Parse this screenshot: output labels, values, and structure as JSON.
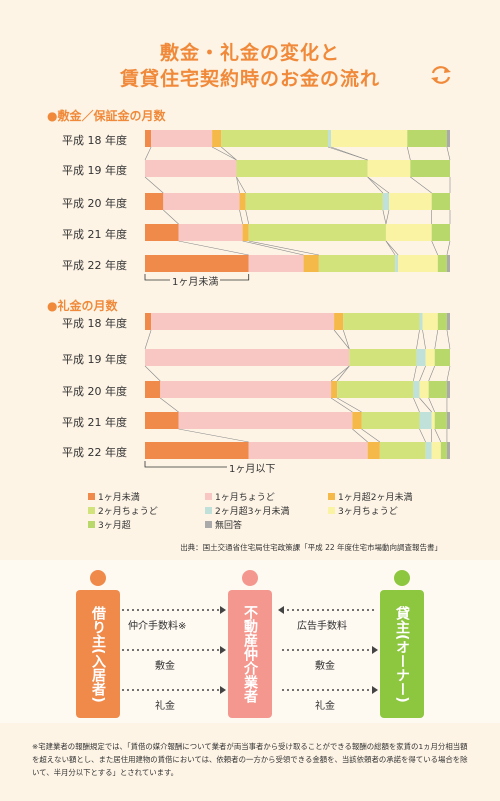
{
  "header": {
    "title_line1": "敷金・礼金の変化と",
    "title_line2": "賃貸住宅契約時のお金の流れ"
  },
  "sections": {
    "deposit_title": "●敷金／保証金の月数",
    "reikin_title": "●礼金の月数",
    "deposit_marker": "1ヶ月未満",
    "reikin_marker": "1ヶ月以下"
  },
  "colors": {
    "lt1": "#f08a4b",
    "eq1": "#f9c7c3",
    "gt1lt2": "#f5b94a",
    "eq2": "#d3e37b",
    "gt2lt3": "#bfe1da",
    "eq3": "#faf3a3",
    "gt3": "#b9d86b",
    "noans": "#aaaaaa",
    "orange_person": "#f08a4b",
    "pink_person": "#f4978e",
    "green_person": "#8dc63f"
  },
  "chart_data": [
    {
      "type": "bar",
      "stacked": true,
      "orientation": "horizontal",
      "title": "●敷金／保証金の月数",
      "categories": [
        "平成 18 年度",
        "平成 19 年度",
        "平成 20 年度",
        "平成 21 年度",
        "平成 22 年度"
      ],
      "xlim": [
        0,
        100
      ],
      "series": [
        {
          "name": "1ヶ月未満",
          "color_key": "lt1",
          "values": [
            2,
            0,
            6,
            11,
            34
          ]
        },
        {
          "name": "1ヶ月ちょうど",
          "color_key": "eq1",
          "values": [
            20,
            30,
            25,
            21,
            18
          ]
        },
        {
          "name": "1ヶ月超2ヶ月未満",
          "color_key": "gt1lt2",
          "values": [
            3,
            0,
            2,
            2,
            5
          ]
        },
        {
          "name": "2ヶ月ちょうど",
          "color_key": "eq2",
          "values": [
            35,
            43,
            45,
            45,
            25
          ]
        },
        {
          "name": "2ヶ月超3ヶ月未満",
          "color_key": "gt2lt3",
          "values": [
            1,
            0,
            2,
            0,
            1
          ]
        },
        {
          "name": "3ヶ月ちょうど",
          "color_key": "eq3",
          "values": [
            25,
            14,
            14,
            15,
            13
          ]
        },
        {
          "name": "3ヶ月超",
          "color_key": "gt3",
          "values": [
            13,
            13,
            6,
            6,
            3
          ]
        },
        {
          "name": "無回答",
          "color_key": "noans",
          "values": [
            1,
            0,
            0,
            0,
            1
          ]
        }
      ]
    },
    {
      "type": "bar",
      "stacked": true,
      "orientation": "horizontal",
      "title": "●礼金の月数",
      "categories": [
        "平成 18 年度",
        "平成 19 年度",
        "平成 20 年度",
        "平成 21 年度",
        "平成 22 年度"
      ],
      "xlim": [
        0,
        100
      ],
      "series": [
        {
          "name": "1ヶ月未満",
          "color_key": "lt1",
          "values": [
            2,
            0,
            5,
            11,
            34
          ]
        },
        {
          "name": "1ヶ月ちょうど",
          "color_key": "eq1",
          "values": [
            60,
            67,
            56,
            57,
            39
          ]
        },
        {
          "name": "1ヶ月超2ヶ月未満",
          "color_key": "gt1lt2",
          "values": [
            3,
            0,
            2,
            3,
            4
          ]
        },
        {
          "name": "2ヶ月ちょうど",
          "color_key": "eq2",
          "values": [
            25,
            22,
            25,
            19,
            15
          ]
        },
        {
          "name": "2ヶ月超3ヶ月未満",
          "color_key": "gt2lt3",
          "values": [
            1,
            3,
            2,
            4,
            2
          ]
        },
        {
          "name": "3ヶ月ちょうど",
          "color_key": "eq3",
          "values": [
            5,
            3,
            3,
            1,
            3
          ]
        },
        {
          "name": "3ヶ月超",
          "color_key": "gt3",
          "values": [
            3,
            5,
            6,
            4,
            2
          ]
        },
        {
          "name": "無回答",
          "color_key": "noans",
          "values": [
            1,
            0,
            1,
            1,
            1
          ]
        }
      ]
    }
  ],
  "legend": [
    {
      "label": "1ヶ月未満",
      "color_key": "lt1"
    },
    {
      "label": "1ヶ月ちょうど",
      "color_key": "eq1"
    },
    {
      "label": "1ヶ月超2ヶ月未満",
      "color_key": "gt1lt2"
    },
    {
      "label": "2ヶ月ちょうど",
      "color_key": "eq2"
    },
    {
      "label": "2ヶ月超3ヶ月未満",
      "color_key": "gt2lt3"
    },
    {
      "label": "3ヶ月ちょうど",
      "color_key": "eq3"
    },
    {
      "label": "3ヶ月超",
      "color_key": "gt3"
    },
    {
      "label": "無回答",
      "color_key": "noans"
    }
  ],
  "source": "出典：国土交通省住宅局住宅政策課「平成 22 年度住宅市場動向調査報告書」",
  "flow": {
    "tenant": "借り主(入居者)",
    "agent": "不動産仲介業者",
    "landlord": "貸主(オーナー)",
    "arrows_left": [
      "仲介手数料※",
      "敷金",
      "礼金"
    ],
    "arrows_right": [
      "広告手数料",
      "敷金",
      "礼金"
    ]
  },
  "footnote": "※宅建業者の報酬規定では、「賃借の媒介報酬について業者が両当事者から受け取ることができる報酬の総額を家賃の1ヵ月分相当額を超えない額とし、また居住用建物の賃借においては、依頼者の一方から受領できる金額を、当該依頼者の承諾を得ている場合を除いて、半月分以下とする」とされています。"
}
